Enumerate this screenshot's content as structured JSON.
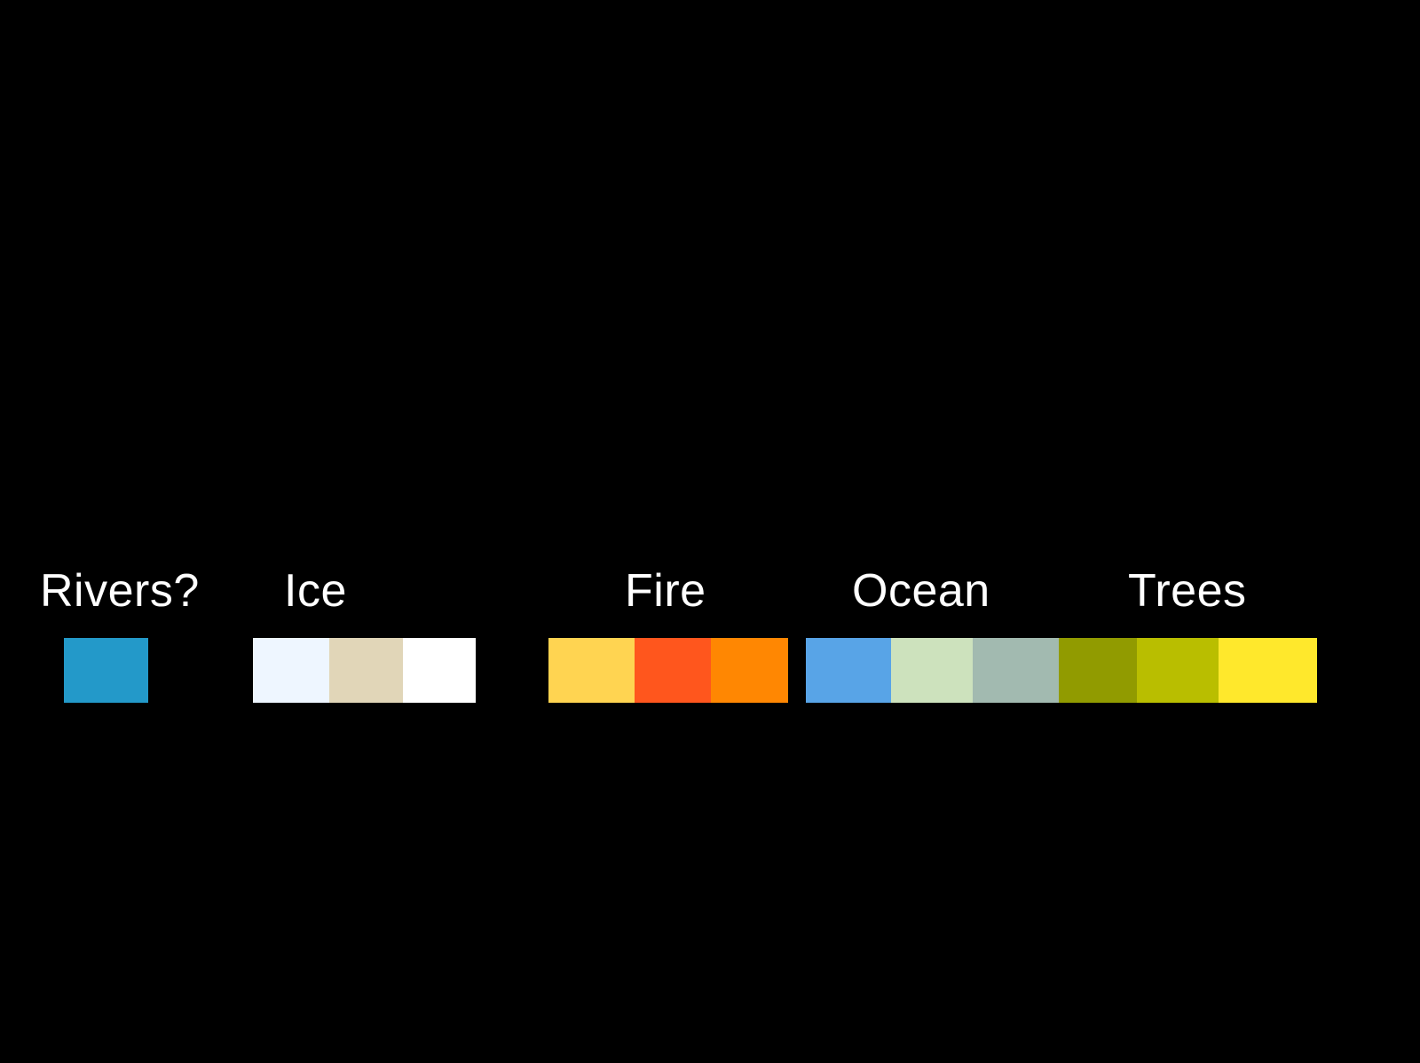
{
  "groups": [
    {
      "id": "rivers",
      "label": "Rivers?",
      "swatches": [
        "#2399c9"
      ]
    },
    {
      "id": "ice",
      "label": "Ice",
      "swatches": [
        "#eef6ff",
        "#e1d6b8",
        "#ffffff"
      ]
    },
    {
      "id": "fire",
      "label": "Fire",
      "swatches": [
        "#ffd451",
        "#ff561d",
        "#ff8702"
      ]
    },
    {
      "id": "ocean",
      "label": "Ocean",
      "swatches": [
        "#58a4e7",
        "#cde2bd",
        "#a2bab0"
      ]
    },
    {
      "id": "trees",
      "label": "Trees",
      "swatches": [
        "#919b00",
        "#b9be00",
        "#ffe82c"
      ]
    }
  ],
  "background": "#000000",
  "text_color": "#ffffff"
}
